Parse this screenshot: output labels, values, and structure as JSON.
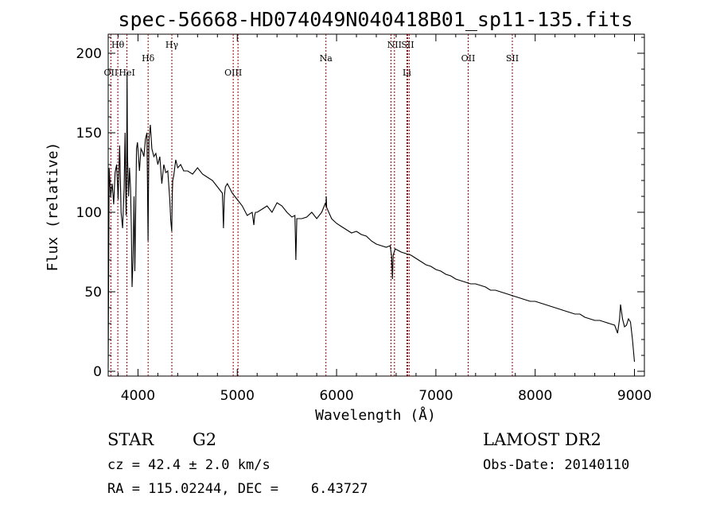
{
  "chart_data": {
    "type": "line",
    "title": "spec-56668-HD074049N040418B01_sp11-135.fits",
    "xlabel": "Wavelength (Å)",
    "ylabel": "Flux (relative)",
    "xlim": [
      3700,
      9100
    ],
    "ylim": [
      -3,
      212
    ],
    "x_ticks": [
      4000,
      5000,
      6000,
      7000,
      8000,
      9000
    ],
    "y_ticks": [
      0,
      50,
      100,
      150,
      200
    ],
    "grid": false,
    "series": [
      {
        "color": "#000000",
        "x": [
          3700,
          3710,
          3725,
          3740,
          3755,
          3770,
          3785,
          3800,
          3815,
          3830,
          3845,
          3860,
          3870,
          3875,
          3880,
          3885,
          3890,
          3895,
          3905,
          3915,
          3925,
          3933,
          3940,
          3950,
          3960,
          3968,
          3975,
          3985,
          3995,
          4005,
          4015,
          4030,
          4045,
          4060,
          4075,
          4090,
          4101,
          4110,
          4125,
          4140,
          4160,
          4180,
          4200,
          4220,
          4240,
          4260,
          4280,
          4300,
          4320,
          4330,
          4340,
          4345,
          4350,
          4360,
          4380,
          4400,
          4430,
          4460,
          4500,
          4550,
          4600,
          4650,
          4700,
          4750,
          4800,
          4850,
          4861,
          4870,
          4880,
          4900,
          4950,
          5000,
          5050,
          5100,
          5150,
          5167,
          5175,
          5183,
          5200,
          5250,
          5300,
          5350,
          5400,
          5450,
          5500,
          5550,
          5580,
          5590,
          5600,
          5650,
          5700,
          5750,
          5800,
          5850,
          5889,
          5893,
          5896,
          5900,
          5950,
          6000,
          6050,
          6100,
          6150,
          6200,
          6250,
          6300,
          6350,
          6400,
          6450,
          6500,
          6540,
          6555,
          6563,
          6570,
          6590,
          6620,
          6650,
          6700,
          6750,
          6800,
          6850,
          6900,
          6950,
          7000,
          7050,
          7100,
          7150,
          7200,
          7250,
          7300,
          7350,
          7400,
          7450,
          7500,
          7550,
          7600,
          7650,
          7700,
          7750,
          7800,
          7850,
          7900,
          7950,
          8000,
          8050,
          8100,
          8150,
          8200,
          8250,
          8300,
          8350,
          8400,
          8450,
          8500,
          8550,
          8600,
          8650,
          8700,
          8750,
          8800,
          8830,
          8850,
          8860,
          8880,
          8900,
          8920,
          8940,
          8960,
          8980,
          9000
        ],
        "y": [
          2,
          128,
          110,
          118,
          105,
          125,
          130,
          108,
          142,
          100,
          90,
          115,
          150,
          125,
          98,
          118,
          188,
          135,
          110,
          128,
          115,
          90,
          53,
          70,
          110,
          63,
          92,
          140,
          144,
          135,
          126,
          140,
          138,
          135,
          146,
          150,
          82,
          145,
          155,
          140,
          135,
          137,
          130,
          135,
          118,
          130,
          125,
          126,
          108,
          95,
          88,
          110,
          120,
          123,
          133,
          128,
          130,
          126,
          126,
          124,
          128,
          124,
          122,
          120,
          116,
          112,
          90,
          110,
          116,
          118,
          112,
          108,
          104,
          98,
          100,
          92,
          98,
          100,
          100,
          102,
          104,
          100,
          106,
          104,
          100,
          97,
          98,
          70,
          96,
          96,
          97,
          100,
          96,
          100,
          106,
          104,
          110,
          103,
          96,
          93,
          91,
          89,
          87,
          88,
          86,
          85,
          82,
          80,
          79,
          78,
          79,
          72,
          58,
          73,
          77,
          76,
          75,
          74,
          73,
          71,
          69,
          67,
          66,
          64,
          63,
          61,
          60,
          58,
          57,
          56,
          55,
          55,
          54,
          53,
          51,
          51,
          50,
          49,
          48,
          47,
          46,
          45,
          44,
          44,
          43,
          42,
          41,
          40,
          39,
          38,
          37,
          36,
          36,
          34,
          33,
          32,
          32,
          31,
          30,
          29,
          24,
          33,
          42,
          33,
          28,
          29,
          33,
          31,
          20,
          6
        ]
      }
    ],
    "annotations": {
      "lines": [
        {
          "x": 3727,
          "label": "OII",
          "row": 2
        },
        {
          "x": 3797,
          "label": "Hθ",
          "row": 0
        },
        {
          "x": 3889,
          "label": "HeI",
          "row": 2
        },
        {
          "x": 4102,
          "label": "Hδ",
          "row": 1
        },
        {
          "x": 4341,
          "label": "Hγ",
          "row": 0
        },
        {
          "x": 4959,
          "label": "OIII",
          "row": 2
        },
        {
          "x": 5007,
          "label": "",
          "row": 2
        },
        {
          "x": 5893,
          "label": "Na",
          "row": 1
        },
        {
          "x": 6548,
          "label": "",
          "row": 0
        },
        {
          "x": 6583,
          "label": "NII",
          "row": 0
        },
        {
          "x": 6708,
          "label": "Li",
          "row": 2
        },
        {
          "x": 6716,
          "label": "SII",
          "row": 0
        },
        {
          "x": 6731,
          "label": "",
          "row": 0
        },
        {
          "x": 7325,
          "label": "OII",
          "row": 1
        },
        {
          "x": 7770,
          "label": "SII",
          "row": 1
        }
      ]
    }
  },
  "info": {
    "object_class": "STAR",
    "subclass": "G2",
    "cz": "cz = 42.4 ± 2.0 km/s",
    "coords": "RA = 115.02244, DEC =    6.43727",
    "survey": "LAMOST DR2",
    "obs_date": "Obs-Date: 20140110"
  },
  "colors": {
    "spectrum": "#000000",
    "line_markers": "#8b0000"
  }
}
